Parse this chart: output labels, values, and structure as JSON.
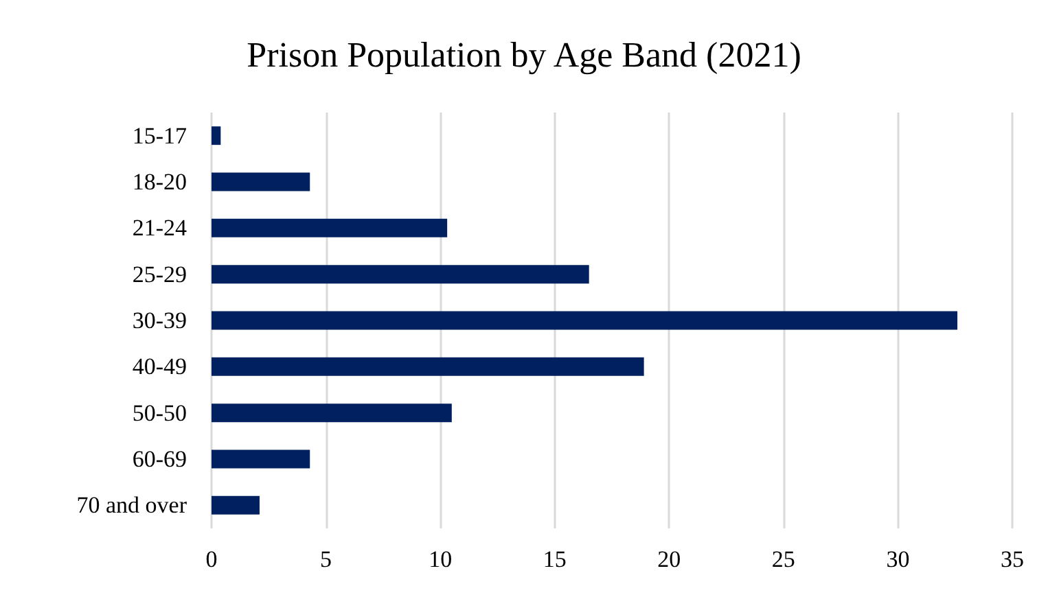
{
  "chart_data": {
    "type": "bar",
    "orientation": "horizontal",
    "title": "Prison Population by Age Band (2021)",
    "categories": [
      "15-17",
      "18-20",
      "21-24",
      "25-29",
      "30-39",
      "40-49",
      "50-50",
      "60-69",
      "70 and over"
    ],
    "values": [
      0.4,
      4.3,
      10.3,
      16.5,
      32.6,
      18.9,
      10.5,
      4.3,
      2.1
    ],
    "color": "#002060",
    "xlim": [
      0,
      35
    ],
    "xticks": [
      0,
      5,
      10,
      15,
      20,
      25,
      30,
      35
    ],
    "grid": "x"
  }
}
